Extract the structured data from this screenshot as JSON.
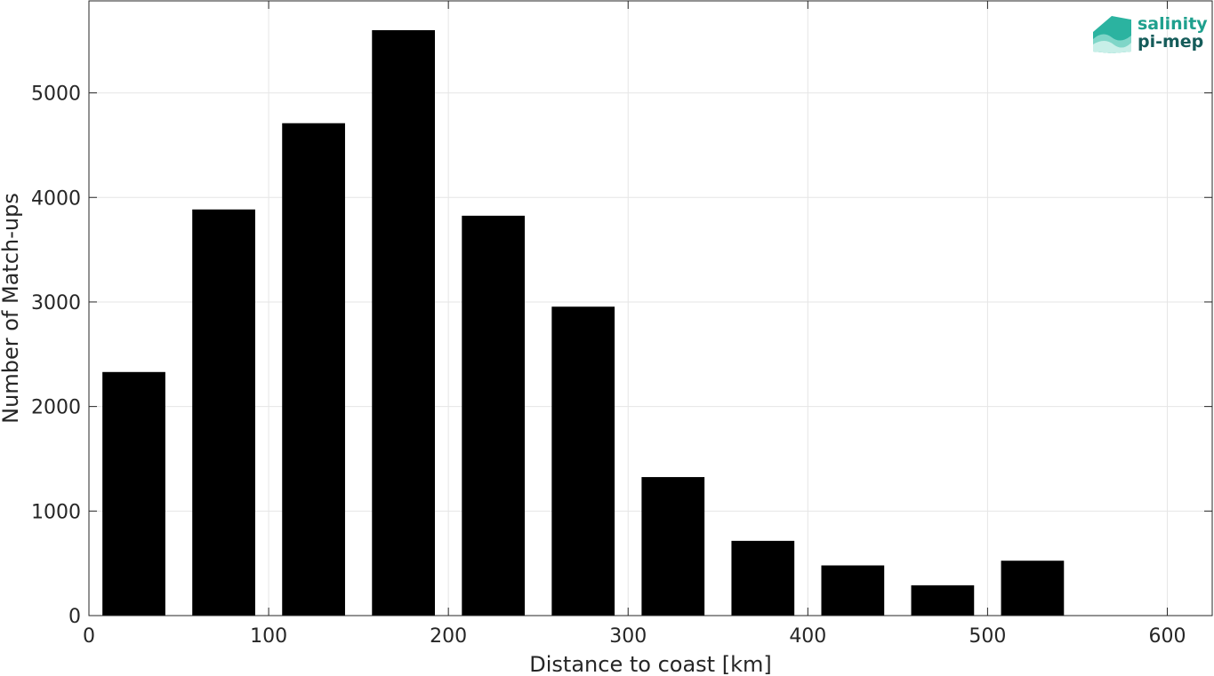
{
  "chart_data": {
    "type": "bar",
    "x": [
      25,
      75,
      125,
      175,
      225,
      275,
      325,
      375,
      425,
      475,
      525,
      575
    ],
    "values": [
      2330,
      3885,
      4710,
      5600,
      3825,
      2955,
      1325,
      715,
      480,
      290,
      525,
      0
    ],
    "xlabel": "Distance to coast [km]",
    "ylabel": "Number of Match-ups",
    "xlim": [
      0,
      625
    ],
    "ylim": [
      0,
      5880
    ],
    "xticks": [
      0,
      100,
      200,
      300,
      400,
      500,
      600
    ],
    "yticks": [
      0,
      1000,
      2000,
      3000,
      4000,
      5000
    ],
    "grid": true,
    "bar_color": "#000000"
  },
  "logo": {
    "line1": "salinity",
    "line2": "pi-mep",
    "icon": "waves-logo-icon"
  }
}
